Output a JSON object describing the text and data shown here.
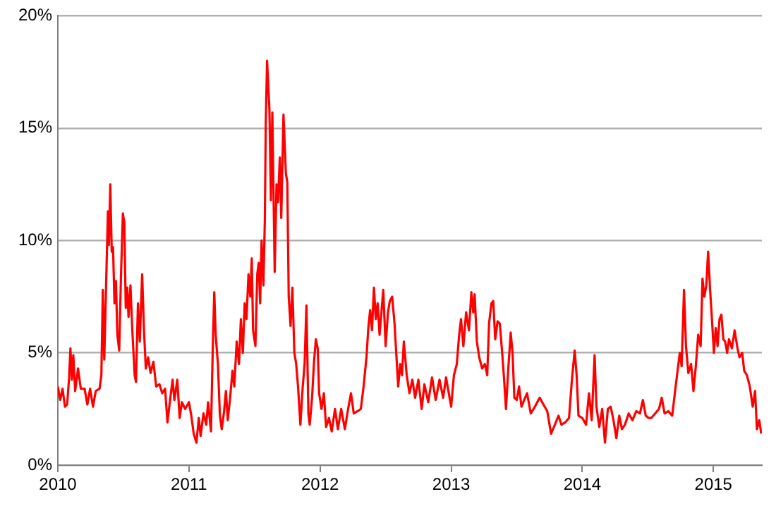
{
  "chart_data": {
    "type": "line",
    "x": [
      2010.0,
      2010.018,
      2010.036,
      2010.054,
      2010.071,
      2010.086,
      2010.096,
      2010.107,
      2010.118,
      2010.132,
      2010.154,
      2010.175,
      2010.204,
      2010.225,
      2010.246,
      2010.268,
      2010.289,
      2010.318,
      2010.332,
      2010.343,
      2010.354,
      2010.368,
      2010.382,
      2010.389,
      2010.4,
      2010.411,
      2010.421,
      2010.432,
      2010.443,
      2010.454,
      2010.468,
      2010.482,
      2010.496,
      2010.507,
      2010.518,
      2010.529,
      2010.539,
      2010.554,
      2010.568,
      2010.586,
      2010.596,
      2010.611,
      2010.625,
      2010.643,
      2010.657,
      2010.671,
      2010.689,
      2010.707,
      2010.729,
      2010.75,
      2010.775,
      2010.796,
      2010.818,
      2010.836,
      2010.854,
      2010.875,
      2010.889,
      2010.911,
      2010.929,
      2010.946,
      2010.971,
      2011.0,
      2011.018,
      2011.036,
      2011.057,
      2011.075,
      2011.089,
      2011.111,
      2011.132,
      2011.146,
      2011.168,
      2011.182,
      2011.193,
      2011.204,
      2011.221,
      2011.236,
      2011.25,
      2011.268,
      2011.282,
      2011.296,
      2011.314,
      2011.332,
      2011.346,
      2011.364,
      2011.382,
      2011.396,
      2011.411,
      2011.425,
      2011.439,
      2011.454,
      2011.468,
      2011.479,
      2011.489,
      2011.507,
      2011.521,
      2011.532,
      2011.543,
      2011.554,
      2011.568,
      2011.579,
      2011.586,
      2011.596,
      2011.614,
      2011.625,
      2011.636,
      2011.654,
      2011.668,
      2011.679,
      2011.693,
      2011.704,
      2011.721,
      2011.739,
      2011.75,
      2011.761,
      2011.775,
      2011.789,
      2011.804,
      2011.818,
      2011.832,
      2011.85,
      2011.868,
      2011.882,
      2011.896,
      2011.911,
      2011.921,
      2011.939,
      2011.954,
      2011.968,
      2011.982,
      2011.993,
      2012.011,
      2012.029,
      2012.046,
      2012.068,
      2012.089,
      2012.114,
      2012.136,
      2012.161,
      2012.189,
      2012.214,
      2012.236,
      2012.257,
      2012.286,
      2012.311,
      2012.332,
      2012.354,
      2012.368,
      2012.382,
      2012.396,
      2012.411,
      2012.425,
      2012.439,
      2012.454,
      2012.468,
      2012.482,
      2012.5,
      2012.518,
      2012.532,
      2012.55,
      2012.568,
      2012.582,
      2012.596,
      2012.611,
      2012.625,
      2012.639,
      2012.661,
      2012.682,
      2012.704,
      2012.725,
      2012.75,
      2012.775,
      2012.796,
      2012.825,
      2012.854,
      2012.882,
      2012.911,
      2012.939,
      2012.961,
      2013.0,
      2013.021,
      2013.043,
      2013.061,
      2013.075,
      2013.093,
      2013.114,
      2013.136,
      2013.154,
      2013.168,
      2013.179,
      2013.196,
      2013.214,
      2013.236,
      2013.257,
      2013.275,
      2013.289,
      2013.307,
      2013.321,
      2013.336,
      2013.354,
      2013.371,
      2013.389,
      2013.404,
      2013.418,
      2013.436,
      2013.454,
      2013.468,
      2013.482,
      2013.5,
      2013.518,
      2013.536,
      2013.557,
      2013.579,
      2013.607,
      2013.639,
      2013.675,
      2013.704,
      2013.733,
      2013.762,
      2013.791,
      2013.819,
      2013.841,
      2013.87,
      2013.899,
      2013.921,
      2013.942,
      2013.957,
      2013.971,
      2014.0,
      2014.029,
      2014.051,
      2014.072,
      2014.094,
      2014.108,
      2014.13,
      2014.152,
      2014.173,
      2014.195,
      2014.217,
      2014.238,
      2014.26,
      2014.282,
      2014.303,
      2014.325,
      2014.354,
      2014.383,
      2014.412,
      2014.44,
      2014.462,
      2014.484,
      2014.505,
      2014.527,
      2014.556,
      2014.585,
      2014.606,
      2014.628,
      2014.657,
      2014.686,
      2014.708,
      2014.729,
      2014.744,
      2014.758,
      2014.776,
      2014.791,
      2014.809,
      2014.83,
      2014.848,
      2014.866,
      2014.884,
      2014.903,
      2014.917,
      2014.931,
      2014.946,
      2014.96,
      2014.975,
      2014.989,
      2015.004,
      2015.018,
      2015.032,
      2015.047,
      2015.061,
      2015.076,
      2015.09,
      2015.105,
      2015.119,
      2015.141,
      2015.162,
      2015.184,
      2015.199,
      2015.22,
      2015.235,
      2015.256,
      2015.278,
      2015.3,
      2015.318,
      2015.332,
      2015.35,
      2015.365
    ],
    "series": [
      {
        "color": "#ff0000",
        "values": [
          3.5,
          2.9,
          3.4,
          2.6,
          2.7,
          3.9,
          5.2,
          3.8,
          4.9,
          3.3,
          4.3,
          3.4,
          3.4,
          2.7,
          3.4,
          2.6,
          3.3,
          3.4,
          4.0,
          7.8,
          4.7,
          8.0,
          11.3,
          9.8,
          12.5,
          9.5,
          9.7,
          7.2,
          8.2,
          5.8,
          5.1,
          8.5,
          11.2,
          10.8,
          7.0,
          7.9,
          6.6,
          8.0,
          6.0,
          4.0,
          3.7,
          7.2,
          5.5,
          8.5,
          6.0,
          4.3,
          4.8,
          4.1,
          4.6,
          3.5,
          3.6,
          3.2,
          3.4,
          1.9,
          2.8,
          3.8,
          2.9,
          3.8,
          2.1,
          2.8,
          2.5,
          2.8,
          2.2,
          1.4,
          1.0,
          2.1,
          1.3,
          2.3,
          1.8,
          2.8,
          1.5,
          5.3,
          7.7,
          5.8,
          4.5,
          2.2,
          1.6,
          2.4,
          3.3,
          2.0,
          3.0,
          4.2,
          3.5,
          5.5,
          4.5,
          6.5,
          5.0,
          7.2,
          6.5,
          8.5,
          7.5,
          9.2,
          6.0,
          5.3,
          8.5,
          9.0,
          7.2,
          10.0,
          8.0,
          11.0,
          15.3,
          18.0,
          15.8,
          11.8,
          15.7,
          8.6,
          12.5,
          11.7,
          13.7,
          11.0,
          15.6,
          13.0,
          12.6,
          7.5,
          6.2,
          7.9,
          5.0,
          4.5,
          3.5,
          1.8,
          3.5,
          4.5,
          7.1,
          2.3,
          1.8,
          3.0,
          4.6,
          5.6,
          5.2,
          3.2,
          2.5,
          3.2,
          1.7,
          2.1,
          1.5,
          2.5,
          1.6,
          2.5,
          1.6,
          2.5,
          3.2,
          2.3,
          2.4,
          2.5,
          3.5,
          4.8,
          6.1,
          6.9,
          6.0,
          7.9,
          6.5,
          7.2,
          5.8,
          6.8,
          7.8,
          5.3,
          6.8,
          7.3,
          7.5,
          6.3,
          4.9,
          3.5,
          4.5,
          4.0,
          5.5,
          4.0,
          3.2,
          3.8,
          3.0,
          3.8,
          2.5,
          3.6,
          2.8,
          3.9,
          2.9,
          3.8,
          3.0,
          3.9,
          2.6,
          4.0,
          4.5,
          5.8,
          6.5,
          5.3,
          6.8,
          6.0,
          7.7,
          6.8,
          7.6,
          5.5,
          4.8,
          4.3,
          4.5,
          4.0,
          6.3,
          7.2,
          7.3,
          5.6,
          6.4,
          6.3,
          5.0,
          3.8,
          2.5,
          4.3,
          5.9,
          5.0,
          3.0,
          2.9,
          3.5,
          2.6,
          2.9,
          3.2,
          2.3,
          2.6,
          3.0,
          2.7,
          2.4,
          1.4,
          1.8,
          2.2,
          1.8,
          1.9,
          2.1,
          3.8,
          5.1,
          4.0,
          2.2,
          2.1,
          1.8,
          3.2,
          2.0,
          4.9,
          2.6,
          1.7,
          2.5,
          1.0,
          2.5,
          2.6,
          2.0,
          1.2,
          2.2,
          1.6,
          1.8,
          2.3,
          2.0,
          2.4,
          2.3,
          2.9,
          2.2,
          2.1,
          2.1,
          2.3,
          2.5,
          3.0,
          2.3,
          2.4,
          2.2,
          3.3,
          4.3,
          5.0,
          4.4,
          7.8,
          5.3,
          4.1,
          4.5,
          3.3,
          4.4,
          5.8,
          5.3,
          8.3,
          7.5,
          8.0,
          9.5,
          7.8,
          6.5,
          5.0,
          6.1,
          5.3,
          6.5,
          6.7,
          5.6,
          5.5,
          5.0,
          5.6,
          5.2,
          6.0,
          5.2,
          4.8,
          5.0,
          4.2,
          4.0,
          3.5,
          2.6,
          3.3,
          1.6,
          2.0,
          1.4
        ]
      }
    ],
    "xlim": [
      2010,
      2015.37
    ],
    "xticks": [
      2010,
      2011,
      2012,
      2013,
      2014,
      2015
    ],
    "ylim": [
      0,
      20
    ],
    "yticks": [
      {
        "value": 0,
        "label": "0%"
      },
      {
        "value": 5,
        "label": "5%"
      },
      {
        "value": 10,
        "label": "10%"
      },
      {
        "value": 15,
        "label": "15%"
      },
      {
        "value": 20,
        "label": "20%"
      }
    ],
    "grid": "y",
    "marker": "none",
    "line_style": "solid"
  }
}
